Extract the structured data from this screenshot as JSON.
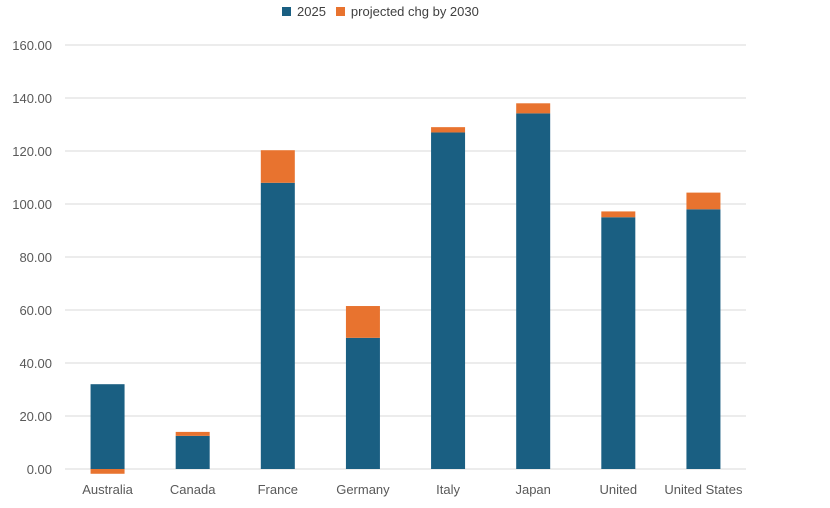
{
  "chart_data": {
    "type": "bar",
    "stacked": true,
    "title": "",
    "xlabel": "",
    "ylabel": "",
    "ylim": [
      0,
      160
    ],
    "yticks": [
      "0.00",
      "20.00",
      "40.00",
      "60.00",
      "80.00",
      "100.00",
      "120.00",
      "140.00",
      "160.00"
    ],
    "grid": true,
    "legend_position": "top-center",
    "categories": [
      "Australia",
      "Canada",
      "France",
      "Germany",
      "Italy",
      "Japan",
      "United",
      "United States"
    ],
    "series": [
      {
        "name": "2025",
        "color": "#1a5f82",
        "values": [
          32.0,
          12.5,
          108.0,
          49.5,
          127.0,
          134.2,
          95.0,
          98.0
        ]
      },
      {
        "name": "projected chg by 2030",
        "color": "#e8732f",
        "values": [
          -1.8,
          1.5,
          12.3,
          12.0,
          2.0,
          3.8,
          2.2,
          6.3
        ]
      }
    ]
  }
}
